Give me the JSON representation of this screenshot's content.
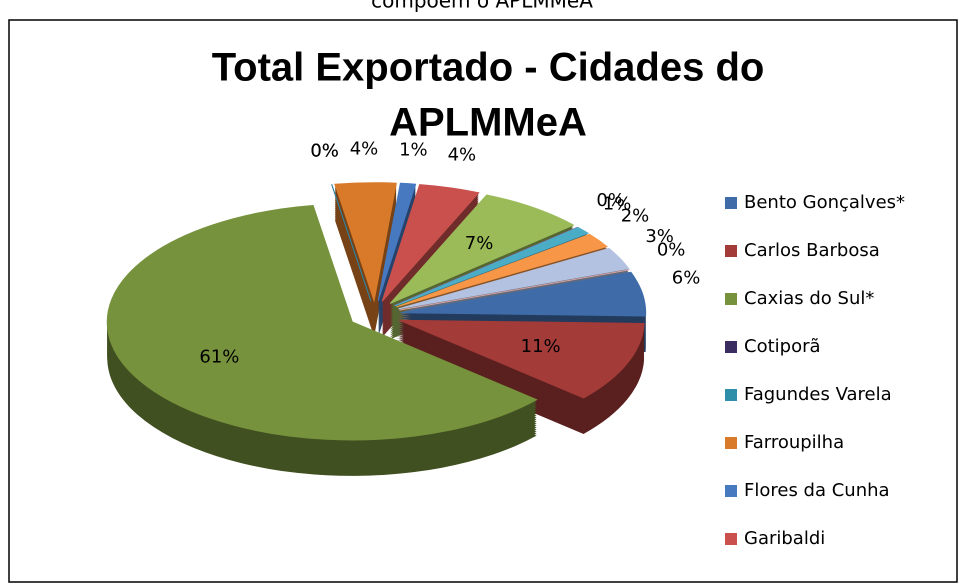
{
  "chart_data": {
    "type": "pie3d",
    "subtitle": "compõem o APLMMeA",
    "title": [
      "Total Exportado - Cidades do",
      "APLMMeA"
    ],
    "categories": [
      "Bento Gonçalves*",
      "Carlos Barbosa",
      "Caxias do Sul*",
      "Cotiporã",
      "Fagundes Varela",
      "Farroupilha",
      "Flores da Cunha",
      "Garibaldi",
      null,
      null,
      null,
      null,
      null,
      null
    ],
    "values": [
      6,
      11,
      61,
      0,
      0,
      4,
      1,
      4,
      7,
      0,
      1,
      2,
      3,
      0
    ],
    "value_labels": [
      "6%",
      "11%",
      "61%",
      "0%",
      "0%",
      "4%",
      "1%",
      "4%",
      "7%",
      "0%",
      "1%",
      "2%",
      "3%",
      "0%"
    ],
    "colors": [
      "#3f6ca8",
      "#a33b38",
      "#76923c",
      "#3b2d60",
      "#2f8ea8",
      "#d97a2a",
      "#4679c0",
      "#c9504c",
      "#9bbb59",
      "#8064a2",
      "#4bacc6",
      "#f79646",
      "#b3c2e0",
      "#dba3a2"
    ],
    "legend": "right"
  }
}
